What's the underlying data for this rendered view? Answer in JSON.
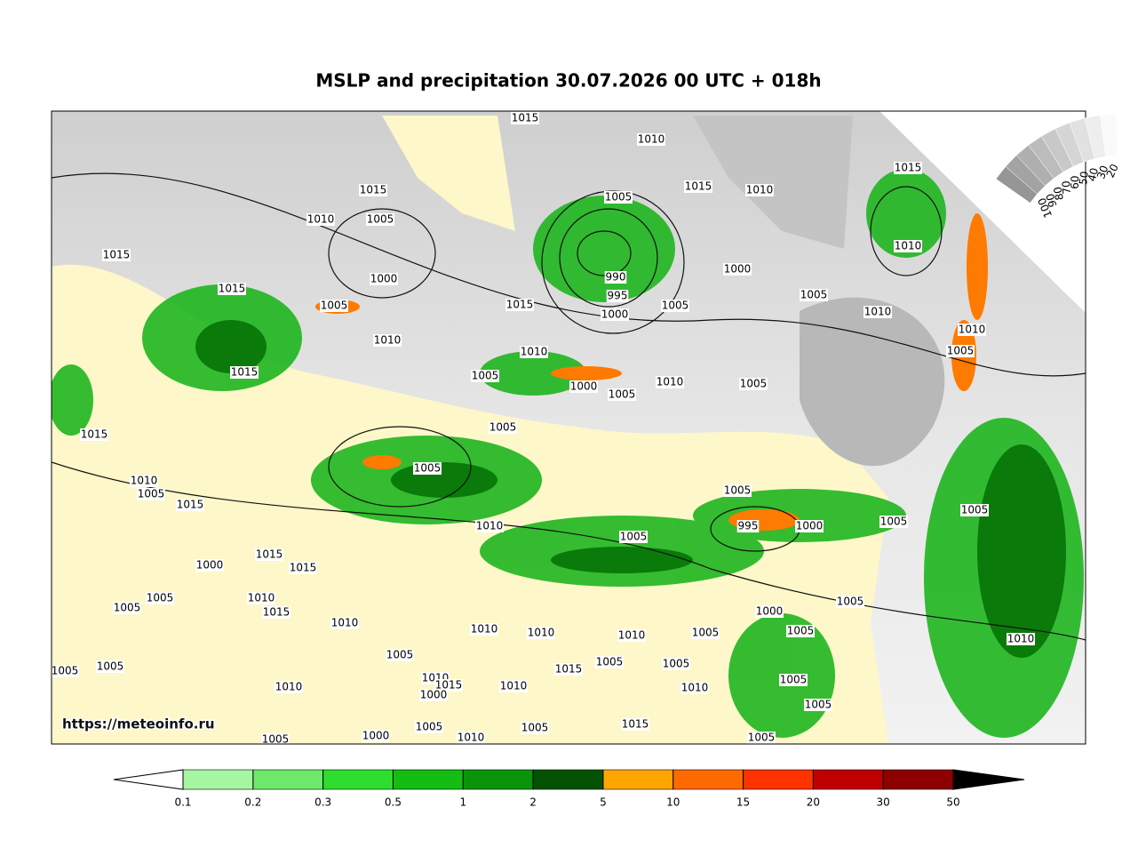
{
  "title": "MSLP and precipitation 30.07.2026 00 UTC + 018h",
  "watermark": "https://meteoinfo.ru",
  "isobars": {
    "labels": [
      1015,
      1010,
      1015,
      1010,
      1005,
      1015,
      1000,
      1015,
      1005,
      1010,
      1015,
      1015,
      1005,
      1015,
      1010,
      1015,
      1010,
      990,
      995,
      1000,
      1015,
      1005,
      1000,
      1005,
      1010,
      1010,
      1005,
      1010,
      1005,
      1000,
      1005,
      1010,
      1005,
      1005,
      1005,
      1010,
      1005,
      1015,
      1010,
      1005,
      1005,
      995,
      1000,
      1005,
      1005,
      1000,
      1015,
      1015,
      1005,
      1005,
      1010,
      1015,
      1010,
      1010,
      1010,
      1010,
      1005,
      1000,
      1005,
      1005,
      1010,
      1005,
      1005,
      1015,
      1005,
      1005,
      1005,
      1010,
      1010,
      1015,
      1000,
      1010,
      1010,
      1005,
      1005,
      1005,
      1010,
      1005,
      1015,
      1000,
      1005,
      1005
    ]
  },
  "colorbar": {
    "ticks": [
      0.1,
      0.2,
      0.3,
      0.5,
      1,
      2,
      5,
      10,
      15,
      20,
      30,
      50
    ],
    "colors": [
      "#a6f5a0",
      "#6ee86a",
      "#2ede2e",
      "#14bc14",
      "#0a940a",
      "#035203",
      "#ffa500",
      "#ff6a00",
      "#ff3300",
      "#c00000",
      "#8e0000"
    ],
    "under_color": "#ffffff",
    "over_color": "#000000"
  },
  "cloud_scale": {
    "ticks": [
      100,
      90,
      80,
      70,
      60,
      50,
      40,
      30,
      20
    ]
  }
}
